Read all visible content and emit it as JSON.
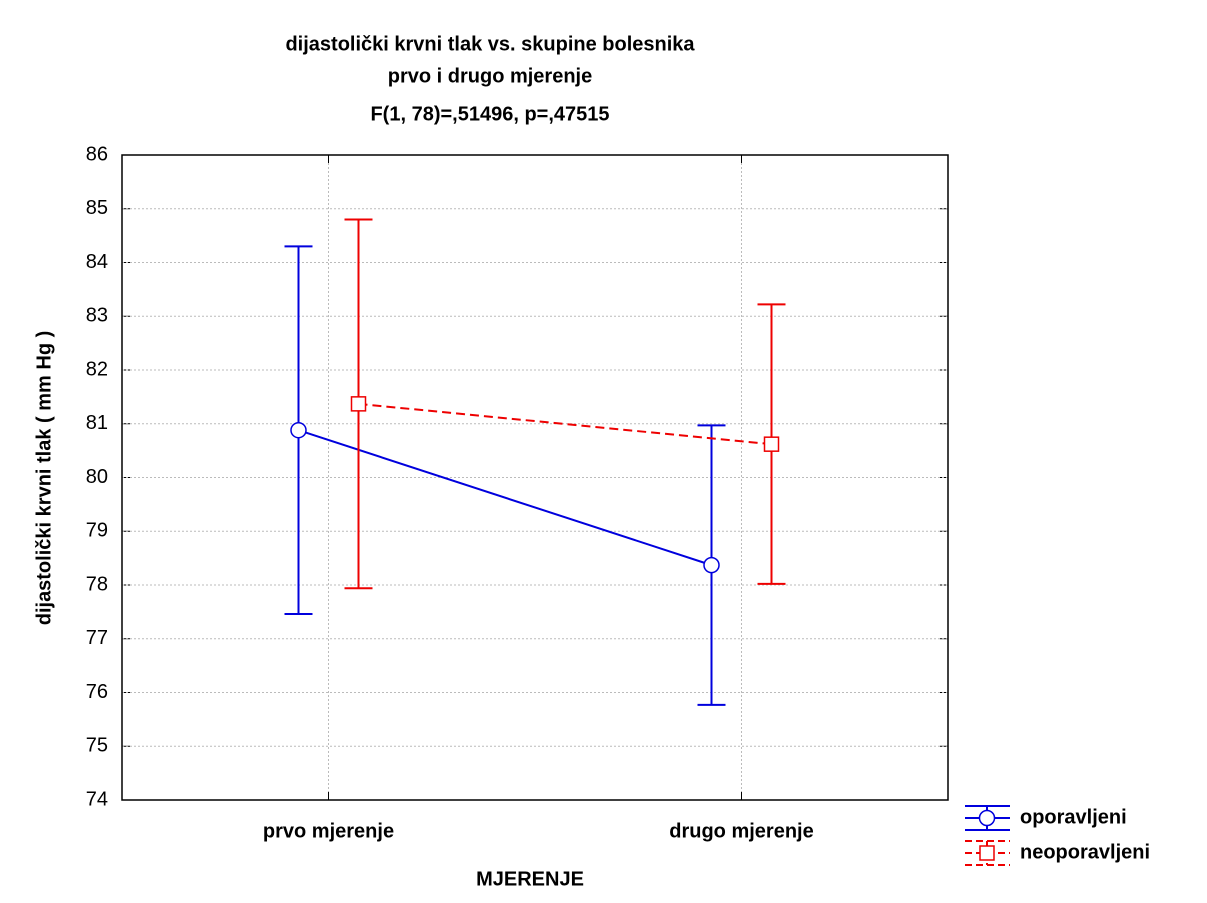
{
  "chart_data": {
    "type": "line",
    "title": "dijastolički krvni tlak vs. skupine bolesnika",
    "subtitle": "prvo i drugo mjerenje",
    "annotation": "F(1, 78)=,51496, p=,47515",
    "x_label": "MJERENJE",
    "y_label": "dijastolički krvni tlak ( mm Hg )",
    "categories": [
      "prvo mjerenje",
      "drugo mjerenje"
    ],
    "series": [
      {
        "name": "oporavljeni",
        "color": "#0000dd",
        "marker": "circle",
        "dashed": false,
        "values": [
          80.88,
          78.37
        ],
        "errors": [
          3.42,
          2.6
        ]
      },
      {
        "name": "neoporavljeni",
        "color": "#ee0000",
        "marker": "square",
        "dashed": true,
        "values": [
          81.37,
          80.62
        ],
        "errors": [
          3.43,
          2.6
        ]
      }
    ],
    "ylim": [
      74,
      86
    ],
    "yticks": [
      74,
      75,
      76,
      77,
      78,
      79,
      80,
      81,
      82,
      83,
      84,
      85,
      86
    ],
    "grid": true,
    "legend": "bottom-right"
  }
}
